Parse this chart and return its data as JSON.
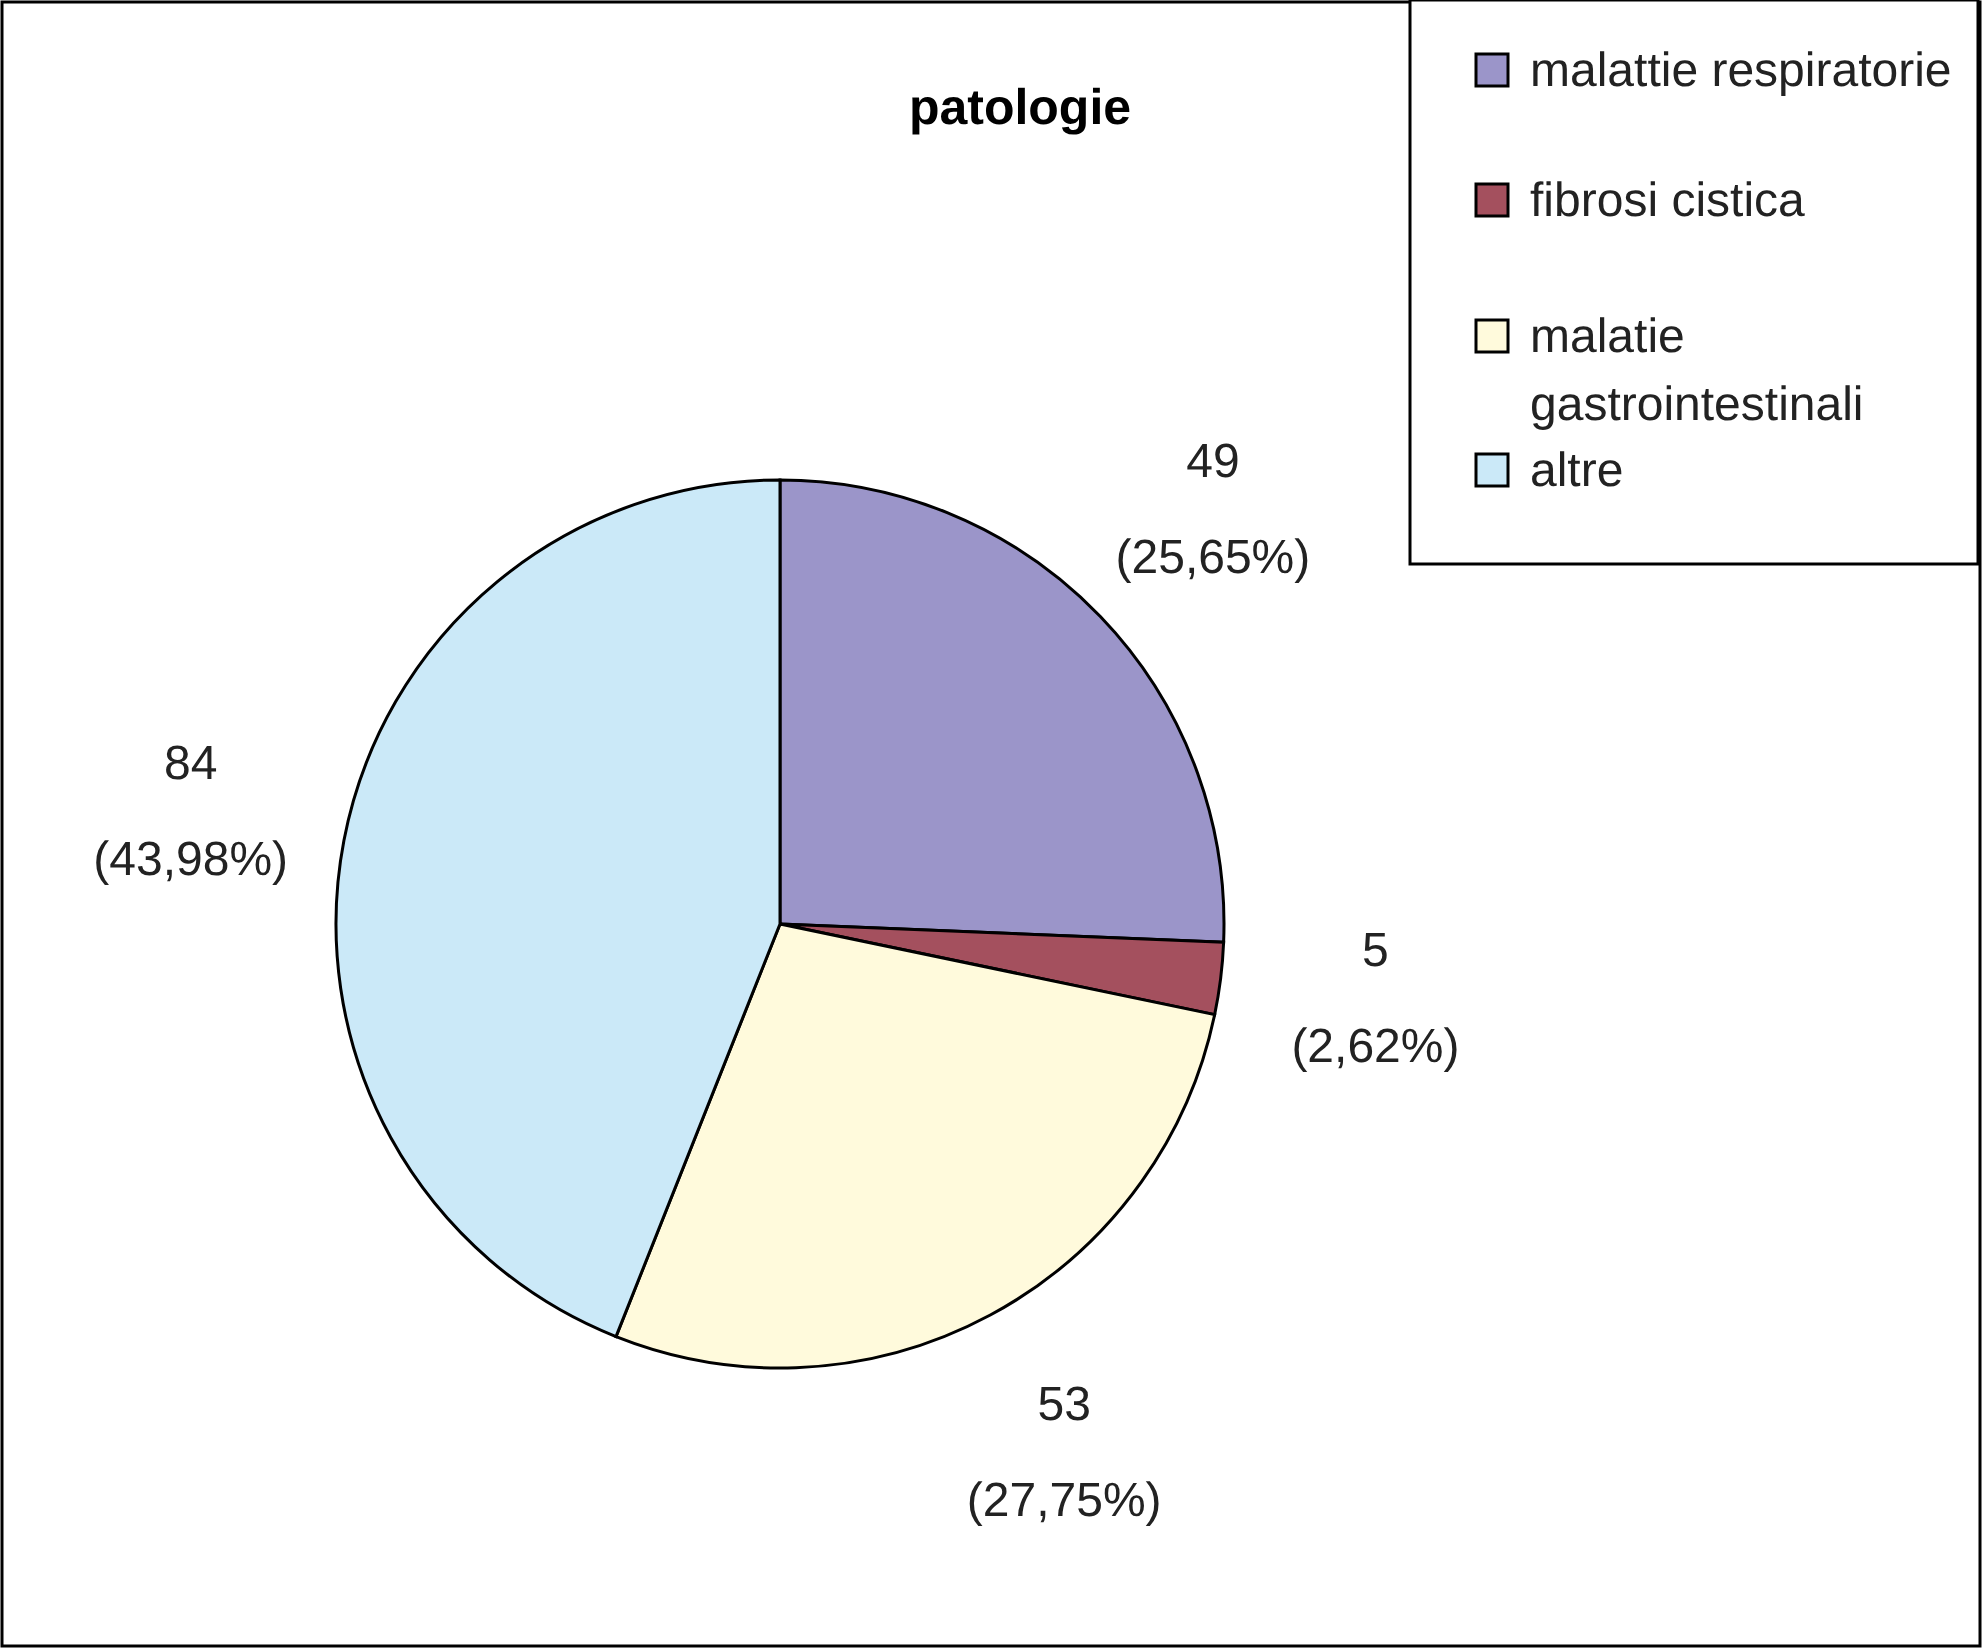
{
  "chart_data": {
    "type": "pie",
    "title": "patologie",
    "categories": [
      "malattie respiratorie",
      "fibrosi cistica",
      "malatie gastrointestinali",
      "altre"
    ],
    "values": [
      49,
      5,
      53,
      84
    ],
    "colors": [
      "#9b95c9",
      "#a4505e",
      "#fffadc",
      "#cbe9f8"
    ],
    "value_labels": [
      "49 (25,65%)",
      "5 (2,62%)",
      "53 (27,75%)",
      "84 (43,98%)"
    ],
    "legend": "top right"
  }
}
